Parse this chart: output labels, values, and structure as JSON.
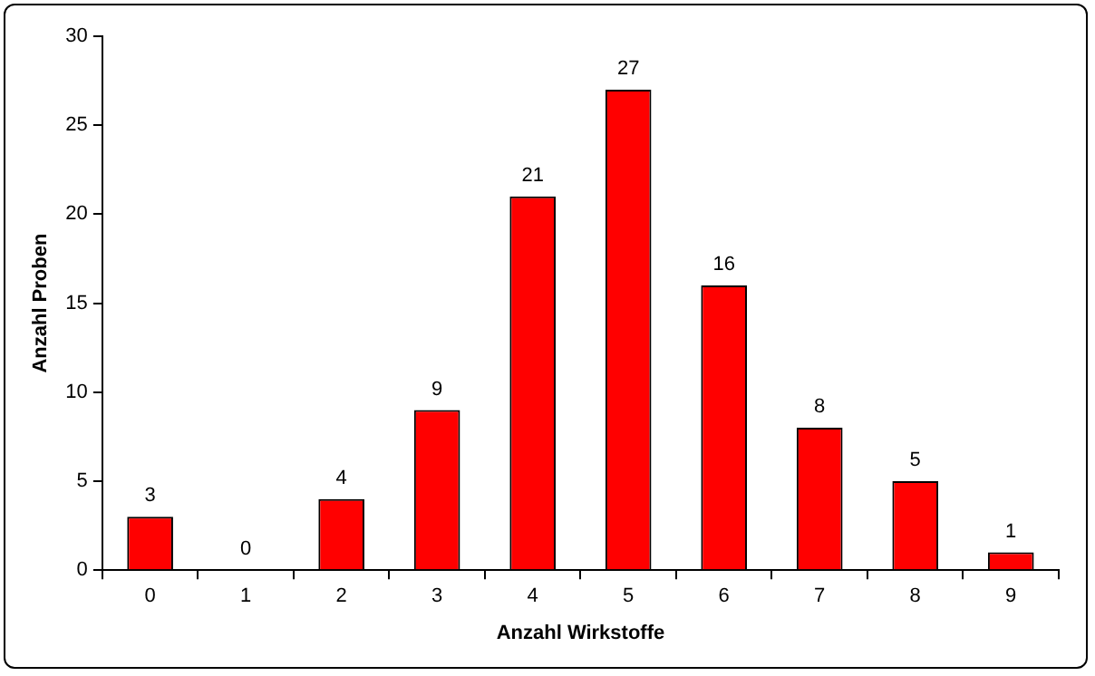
{
  "chart_data": {
    "type": "bar",
    "xlabel": "Anzahl Wirkstoffe",
    "ylabel": "Anzahl Proben",
    "categories": [
      "0",
      "1",
      "2",
      "3",
      "4",
      "5",
      "6",
      "7",
      "8",
      "9"
    ],
    "values": [
      3,
      0,
      4,
      9,
      21,
      27,
      16,
      8,
      5,
      1
    ],
    "color": "#ff0000",
    "ylim": [
      0,
      30
    ],
    "yticks": [
      0,
      5,
      10,
      15,
      20,
      25,
      30
    ],
    "grid": false,
    "data_labels": true,
    "legend": false
  }
}
